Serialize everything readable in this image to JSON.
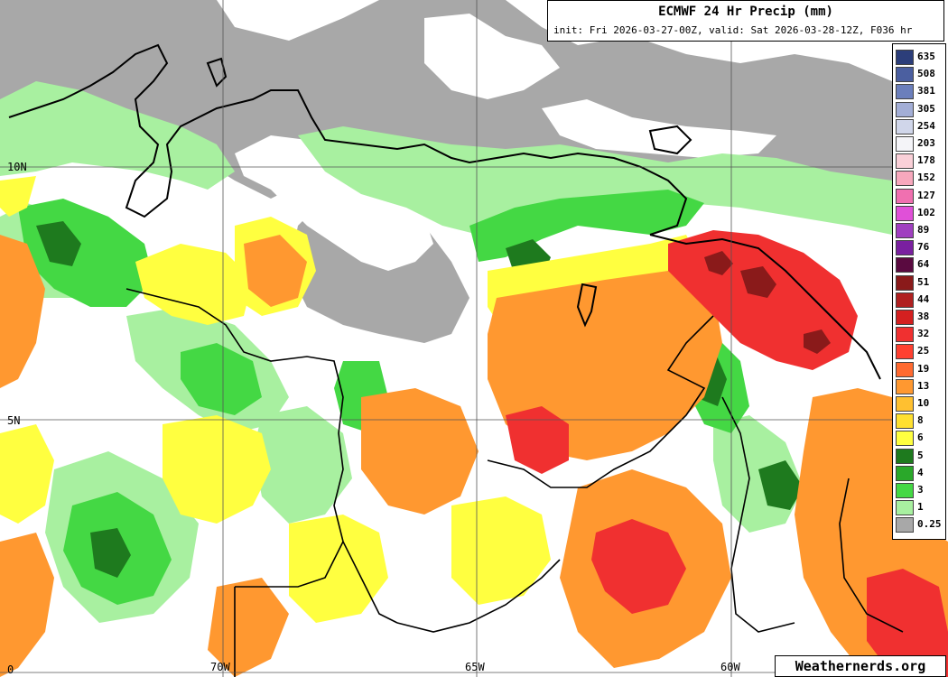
{
  "header": {
    "title": "ECMWF 24 Hr Precip (mm)",
    "subtitle": "init: Fri 2026-03-27-00Z, valid: Sat 2026-03-28-12Z, F036 hr"
  },
  "legend": {
    "levels": [
      {
        "label": "635",
        "color": "#2c3e7a"
      },
      {
        "label": "508",
        "color": "#4b5fa0"
      },
      {
        "label": "381",
        "color": "#6b7fbc"
      },
      {
        "label": "305",
        "color": "#a3aed6"
      },
      {
        "label": "254",
        "color": "#d0d6ea"
      },
      {
        "label": "203",
        "color": "#f4f4f8"
      },
      {
        "label": "178",
        "color": "#fad0d8"
      },
      {
        "label": "152",
        "color": "#f7a8bd"
      },
      {
        "label": "127",
        "color": "#f070b0"
      },
      {
        "label": "102",
        "color": "#e050d8"
      },
      {
        "label": "89",
        "color": "#a040c0"
      },
      {
        "label": "76",
        "color": "#7a20a0"
      },
      {
        "label": "64",
        "color": "#5a0a40"
      },
      {
        "label": "51",
        "color": "#8a1a1a"
      },
      {
        "label": "44",
        "color": "#b02020"
      },
      {
        "label": "38",
        "color": "#d42020"
      },
      {
        "label": "32",
        "color": "#f03030"
      },
      {
        "label": "25",
        "color": "#ff4030"
      },
      {
        "label": "19",
        "color": "#ff6a30"
      },
      {
        "label": "13",
        "color": "#ff9830"
      },
      {
        "label": "10",
        "color": "#ffc030"
      },
      {
        "label": "8",
        "color": "#ffe030"
      },
      {
        "label": "6",
        "color": "#ffff40"
      },
      {
        "label": "5",
        "color": "#1e7a1e"
      },
      {
        "label": "4",
        "color": "#2aa82a"
      },
      {
        "label": "3",
        "color": "#44d844"
      },
      {
        "label": "1",
        "color": "#a8f0a0"
      },
      {
        "label": "0.25",
        "color": "#a8a8a8"
      }
    ]
  },
  "gridlines": {
    "lat_labels": [
      "10N",
      "5N",
      "0"
    ],
    "lon_labels": [
      "70W",
      "65W",
      "60W"
    ]
  },
  "brand": "Weathernerds.org"
}
